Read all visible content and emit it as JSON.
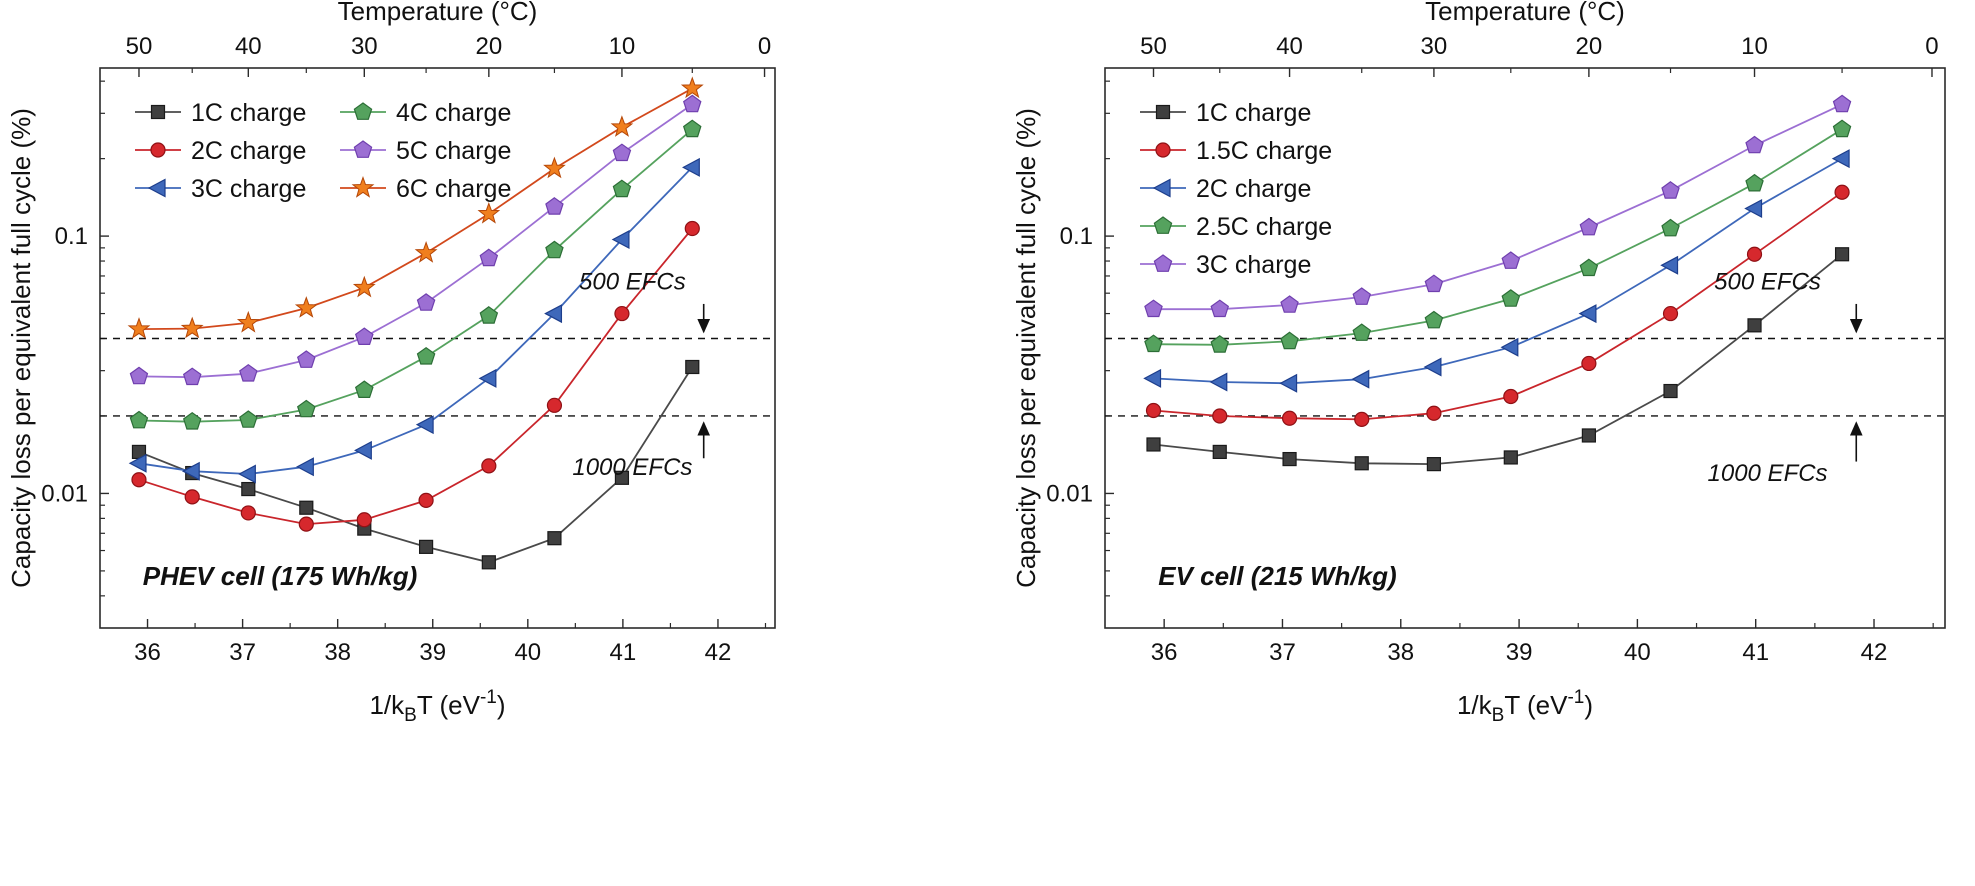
{
  "figure": {
    "background": "#ffffff"
  },
  "shared": {
    "y_axis_label": "Capacity loss per equivalent full cycle (%)",
    "top_axis_label": "Temperature (°C)",
    "x_axis_label_parts": {
      "pre": "1/k",
      "sub": "B",
      "mid": "T (eV",
      "sup": "-1",
      "post": ")"
    },
    "ref_line_color": "#111111",
    "axis_color": "#2b2b2b"
  },
  "chart_data": [
    {
      "type": "line",
      "panel_label": "PHEV cell (175 Wh/kg)",
      "panel_label_pos": {
        "x": 35.95,
        "y": 0.0044
      },
      "x_axis": {
        "lim": [
          35.5,
          42.6
        ],
        "ticks": [
          "36",
          "37",
          "38",
          "39",
          "40",
          "41",
          "42"
        ],
        "tick_values": [
          36,
          37,
          38,
          39,
          40,
          41,
          42
        ]
      },
      "y_axis": {
        "scale": "log",
        "lim": [
          0.003,
          0.45
        ],
        "ticks": [
          {
            "label": "0.01",
            "value": 0.01
          },
          {
            "label": "0.1",
            "value": 0.1
          }
        ]
      },
      "top_axis": {
        "ticks": [
          {
            "label": "50",
            "x": 35.91
          },
          {
            "label": "40",
            "x": 37.06
          },
          {
            "label": "30",
            "x": 38.28
          },
          {
            "label": "20",
            "x": 39.59
          },
          {
            "label": "10",
            "x": 40.99
          },
          {
            "label": "0",
            "x": 42.49
          }
        ],
        "minor_x": [
          36.47,
          37.67,
          38.93,
          40.28,
          41.73
        ]
      },
      "x": [
        35.91,
        36.47,
        37.06,
        37.67,
        38.28,
        38.93,
        39.59,
        40.28,
        40.99,
        41.73
      ],
      "series": [
        {
          "name": "1C charge",
          "marker": "square",
          "fill": "#3f3f3f",
          "edge": "#1a1a1a",
          "line": "#4a4a4a",
          "values": [
            0.0145,
            0.012,
            0.0104,
            0.0088,
            0.0073,
            0.0062,
            0.0054,
            0.0067,
            0.0115,
            0.031
          ]
        },
        {
          "name": "2C charge",
          "marker": "circle",
          "fill": "#d6282d",
          "edge": "#8f1115",
          "line": "#c9252b",
          "values": [
            0.0113,
            0.0097,
            0.0084,
            0.0076,
            0.0079,
            0.0094,
            0.0128,
            0.022,
            0.05,
            0.107
          ]
        },
        {
          "name": "3C charge",
          "marker": "triangle-left",
          "fill": "#3e68ba",
          "edge": "#1d3e8c",
          "line": "#3e68ba",
          "values": [
            0.0131,
            0.0122,
            0.0119,
            0.0127,
            0.0147,
            0.0185,
            0.028,
            0.05,
            0.097,
            0.185
          ]
        },
        {
          "name": "4C charge",
          "marker": "pentagon",
          "fill": "#55a25e",
          "edge": "#2c6e36",
          "line": "#55a25e",
          "values": [
            0.0192,
            0.019,
            0.0193,
            0.0212,
            0.0252,
            0.034,
            0.049,
            0.088,
            0.152,
            0.26
          ]
        },
        {
          "name": "5C charge",
          "marker": "pentagon",
          "fill": "#9c6fd3",
          "edge": "#6f3fae",
          "line": "#9c6fd3",
          "values": [
            0.0285,
            0.0283,
            0.0292,
            0.033,
            0.0405,
            0.055,
            0.082,
            0.13,
            0.21,
            0.325
          ]
        },
        {
          "name": "6C charge",
          "marker": "star",
          "fill": "#f07f1e",
          "edge": "#b54708",
          "line": "#d2491c",
          "values": [
            0.0435,
            0.0437,
            0.046,
            0.0525,
            0.063,
            0.086,
            0.122,
            0.183,
            0.265,
            0.375
          ]
        }
      ],
      "legend": {
        "columns": 2
      },
      "ref_lines": [
        {
          "value": 0.04
        },
        {
          "value": 0.02
        }
      ],
      "annotations": [
        {
          "text": "500 EFCs",
          "x": 41.1,
          "y": 0.062,
          "arrow": {
            "x": 41.85,
            "y_from": 0.0545,
            "y_to": 0.0425
          }
        },
        {
          "text": "1000 EFCs",
          "x": 41.1,
          "y": 0.0118,
          "arrow": {
            "x": 41.85,
            "y_from": 0.0137,
            "y_to": 0.0188
          }
        }
      ]
    },
    {
      "type": "line",
      "panel_label": "EV cell (215 Wh/kg)",
      "panel_label_pos": {
        "x": 35.95,
        "y": 0.0044
      },
      "x_axis": {
        "lim": [
          35.5,
          42.6
        ],
        "ticks": [
          "36",
          "37",
          "38",
          "39",
          "40",
          "41",
          "42"
        ],
        "tick_values": [
          36,
          37,
          38,
          39,
          40,
          41,
          42
        ]
      },
      "y_axis": {
        "scale": "log",
        "lim": [
          0.003,
          0.45
        ],
        "ticks": [
          {
            "label": "0.01",
            "value": 0.01
          },
          {
            "label": "0.1",
            "value": 0.1
          }
        ]
      },
      "top_axis": {
        "ticks": [
          {
            "label": "50",
            "x": 35.91
          },
          {
            "label": "40",
            "x": 37.06
          },
          {
            "label": "30",
            "x": 38.28
          },
          {
            "label": "20",
            "x": 39.59
          },
          {
            "label": "10",
            "x": 40.99
          },
          {
            "label": "0",
            "x": 42.49
          }
        ],
        "minor_x": [
          36.47,
          37.67,
          38.93,
          40.28,
          41.73
        ]
      },
      "x": [
        35.91,
        36.47,
        37.06,
        37.67,
        38.28,
        38.93,
        39.59,
        40.28,
        40.99,
        41.73
      ],
      "series": [
        {
          "name": "1C charge",
          "marker": "square",
          "fill": "#3f3f3f",
          "edge": "#1a1a1a",
          "line": "#4a4a4a",
          "values": [
            0.0155,
            0.0145,
            0.0136,
            0.0131,
            0.013,
            0.0138,
            0.0168,
            0.025,
            0.045,
            0.085
          ]
        },
        {
          "name": "1.5C charge",
          "marker": "circle",
          "fill": "#d6282d",
          "edge": "#8f1115",
          "line": "#c9252b",
          "values": [
            0.021,
            0.02,
            0.0196,
            0.0194,
            0.0205,
            0.0238,
            0.032,
            0.05,
            0.085,
            0.148
          ]
        },
        {
          "name": "2C charge",
          "marker": "triangle-left",
          "fill": "#3e68ba",
          "edge": "#1d3e8c",
          "line": "#3e68ba",
          "values": [
            0.028,
            0.0271,
            0.0268,
            0.0278,
            0.031,
            0.037,
            0.05,
            0.077,
            0.128,
            0.2
          ]
        },
        {
          "name": "2.5C charge",
          "marker": "pentagon",
          "fill": "#55a25e",
          "edge": "#2c6e36",
          "line": "#55a25e",
          "values": [
            0.038,
            0.0378,
            0.039,
            0.042,
            0.047,
            0.057,
            0.075,
            0.107,
            0.16,
            0.26
          ]
        },
        {
          "name": "3C charge",
          "marker": "pentagon",
          "fill": "#9c6fd3",
          "edge": "#6f3fae",
          "line": "#9c6fd3",
          "values": [
            0.052,
            0.052,
            0.054,
            0.058,
            0.065,
            0.08,
            0.108,
            0.15,
            0.225,
            0.325
          ]
        }
      ],
      "legend": {
        "columns": 1
      },
      "ref_lines": [
        {
          "value": 0.04
        },
        {
          "value": 0.02
        }
      ],
      "annotations": [
        {
          "text": "500 EFCs",
          "x": 41.1,
          "y": 0.062,
          "arrow": {
            "x": 41.85,
            "y_from": 0.0545,
            "y_to": 0.0425
          }
        },
        {
          "text": "1000 EFCs",
          "x": 41.1,
          "y": 0.0112,
          "arrow": {
            "x": 41.85,
            "y_from": 0.0133,
            "y_to": 0.0188
          }
        }
      ]
    }
  ]
}
